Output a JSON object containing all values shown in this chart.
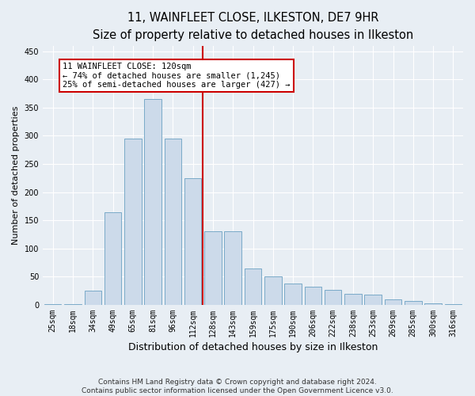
{
  "title": "11, WAINFLEET CLOSE, ILKESTON, DE7 9HR",
  "subtitle": "Size of property relative to detached houses in Ilkeston",
  "xlabel": "Distribution of detached houses by size in Ilkeston",
  "ylabel": "Number of detached properties",
  "categories": [
    "25sqm",
    "18sqm",
    "34sqm",
    "49sqm",
    "65sqm",
    "81sqm",
    "96sqm",
    "112sqm",
    "128sqm",
    "143sqm",
    "159sqm",
    "175sqm",
    "190sqm",
    "206sqm",
    "222sqm",
    "238sqm",
    "253sqm",
    "269sqm",
    "285sqm",
    "300sqm",
    "316sqm"
  ],
  "values": [
    1,
    2,
    25,
    165,
    295,
    365,
    295,
    225,
    130,
    130,
    65,
    50,
    38,
    32,
    27,
    20,
    18,
    10,
    7,
    3,
    2
  ],
  "bar_color": "#ccdaea",
  "bar_edge_color": "#7aaac8",
  "bar_width": 0.85,
  "vline_x": 7.5,
  "vline_color": "#cc0000",
  "annotation_text": "11 WAINFLEET CLOSE: 120sqm\n← 74% of detached houses are smaller (1,245)\n25% of semi-detached houses are larger (427) →",
  "annotation_box_color": "#ffffff",
  "annotation_box_edge": "#cc0000",
  "ylim": [
    0,
    460
  ],
  "yticks": [
    0,
    50,
    100,
    150,
    200,
    250,
    300,
    350,
    400,
    450
  ],
  "footer_line1": "Contains HM Land Registry data © Crown copyright and database right 2024.",
  "footer_line2": "Contains public sector information licensed under the Open Government Licence v3.0.",
  "bg_color": "#e8eef4",
  "plot_bg_color": "#e8eef4",
  "title_fontsize": 10.5,
  "subtitle_fontsize": 9,
  "xlabel_fontsize": 9,
  "ylabel_fontsize": 8,
  "tick_fontsize": 7,
  "annotation_fontsize": 7.5,
  "footer_fontsize": 6.5
}
